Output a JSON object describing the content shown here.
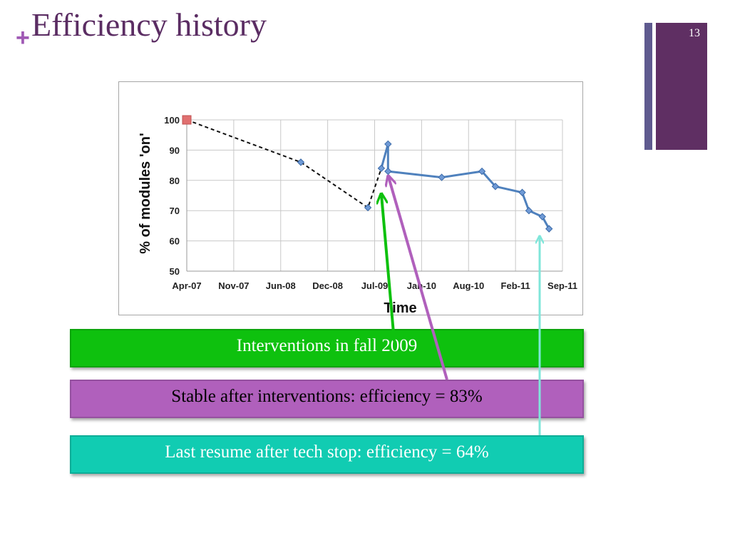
{
  "slide": {
    "title": "Efficiency history",
    "number": "13"
  },
  "callouts": {
    "green": "Interventions in fall 2009",
    "purple": "Stable after interventions: efficiency = 83%",
    "teal": "Last resume after tech stop: efficiency = 64%"
  },
  "colors": {
    "title": "#5b2d63",
    "green": "#0ec10e",
    "purple": "#b060bc",
    "teal": "#11ccb2",
    "series": "#4f81bd",
    "start_marker": "#e07070"
  },
  "chart_data": {
    "type": "line",
    "xlabel": "Time",
    "ylabel": "% of modules 'on'",
    "x_tick_labels": [
      "Apr-07",
      "Nov-07",
      "Jun-08",
      "Dec-08",
      "Jul-09",
      "Jan-10",
      "Aug-10",
      "Feb-11",
      "Sep-11"
    ],
    "ylim": [
      50,
      100
    ],
    "y_ticks": [
      50,
      60,
      70,
      80,
      90,
      100
    ],
    "grid": true,
    "legend": "none",
    "series": [
      {
        "style": "dashed-black",
        "points": [
          {
            "x": "2007-04",
            "y": 100
          },
          {
            "x": "2008-09",
            "y": 86
          },
          {
            "x": "2009-07",
            "y": 71
          },
          {
            "x": "2009-09",
            "y": 84
          }
        ]
      },
      {
        "style": "solid-blue",
        "points": [
          {
            "x": "2009-09",
            "y": 84
          },
          {
            "x": "2009-10",
            "y": 92
          },
          {
            "x": "2009-10",
            "y": 83
          },
          {
            "x": "2010-06",
            "y": 81
          },
          {
            "x": "2010-12",
            "y": 83
          },
          {
            "x": "2011-02",
            "y": 78
          },
          {
            "x": "2011-06",
            "y": 76
          },
          {
            "x": "2011-07",
            "y": 70
          },
          {
            "x": "2011-09",
            "y": 68
          },
          {
            "x": "2011-10",
            "y": 64
          }
        ]
      }
    ]
  }
}
